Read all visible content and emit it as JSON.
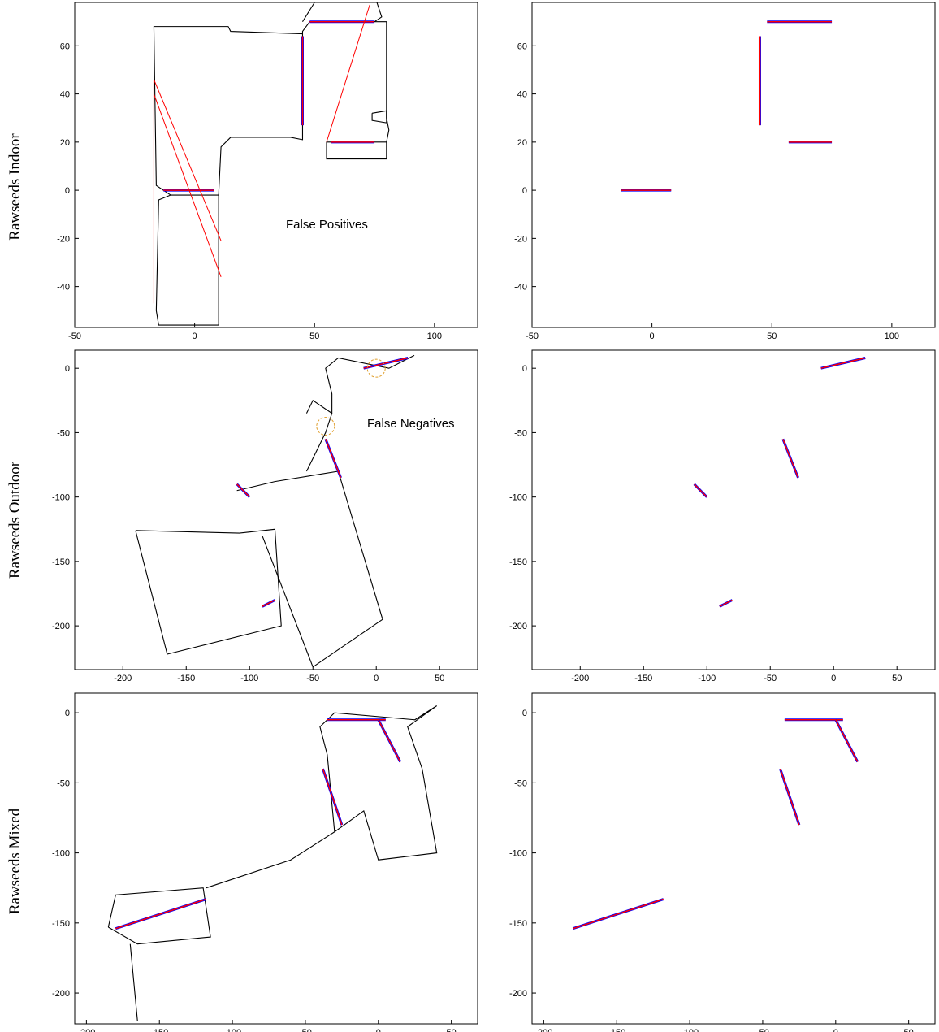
{
  "row_labels": [
    "Rawseeds Indoor",
    "Rawseeds Outdoor",
    "Rawseeds Mixed"
  ],
  "annotations": {
    "false_positives": "False Positives",
    "false_negatives": "False Negatives"
  },
  "colors": {
    "trajectory": "#000000",
    "true_loop_closure": "#0000ff",
    "detected_loop_closure": "#ff0000",
    "false_negative_marker": "#e0a030"
  },
  "chart_data": [
    {
      "type": "line",
      "panel": "indoor-left",
      "xlim": [
        -50,
        118
      ],
      "ylim": [
        -57,
        78
      ],
      "xticks": [
        -50,
        0,
        50,
        100
      ],
      "yticks": [
        -40,
        -20,
        0,
        20,
        40,
        60
      ],
      "grid": false,
      "path": [
        [
          10,
          -56
        ],
        [
          10,
          -2
        ],
        [
          11,
          18
        ],
        [
          15,
          22
        ],
        [
          40,
          22
        ],
        [
          45,
          21
        ],
        [
          45,
          66
        ],
        [
          48,
          70
        ],
        [
          80,
          70
        ],
        [
          80,
          30
        ],
        [
          81,
          25
        ],
        [
          80,
          20
        ],
        [
          55,
          20
        ],
        [
          55,
          13
        ],
        [
          80,
          13
        ],
        [
          80,
          20
        ]
      ],
      "path2": [
        [
          10,
          -2
        ],
        [
          -10,
          -2
        ],
        [
          -15,
          -4
        ],
        [
          -16,
          -50
        ],
        [
          -15,
          -56
        ],
        [
          10,
          -56
        ]
      ],
      "path3": [
        [
          -10,
          -2
        ],
        [
          -16,
          2
        ],
        [
          -17,
          68
        ],
        [
          14,
          68
        ],
        [
          15,
          66
        ],
        [
          45,
          65
        ]
      ],
      "path4": [
        [
          45,
          70
        ],
        [
          50,
          78
        ],
        [
          76,
          78
        ],
        [
          78,
          72
        ],
        [
          75,
          70
        ]
      ],
      "path5": [
        [
          74,
          32
        ],
        [
          80,
          33
        ],
        [
          80,
          28
        ],
        [
          74,
          29
        ],
        [
          74,
          32
        ]
      ],
      "true_segments": [
        [
          [
            -13,
            0
          ],
          [
            8,
            0
          ]
        ],
        [
          [
            45,
            27
          ],
          [
            45,
            64
          ]
        ],
        [
          [
            48,
            70
          ],
          [
            75,
            70
          ]
        ],
        [
          [
            57,
            20
          ],
          [
            75,
            20
          ]
        ]
      ],
      "false_positive_links": [
        [
          [
            -17,
            46
          ],
          [
            11,
            -21
          ]
        ],
        [
          [
            -17,
            40
          ],
          [
            11,
            -36
          ]
        ],
        [
          [
            -17,
            46
          ],
          [
            -17,
            -47
          ]
        ],
        [
          [
            55,
            20
          ],
          [
            73,
            77
          ]
        ]
      ]
    },
    {
      "type": "line",
      "panel": "indoor-right",
      "xlim": [
        -50,
        118
      ],
      "ylim": [
        -57,
        78
      ],
      "xticks": [
        -50,
        0,
        50,
        100
      ],
      "yticks": [
        -40,
        -20,
        0,
        20,
        40,
        60
      ],
      "grid": false,
      "true_segments": [
        [
          [
            -13,
            0
          ],
          [
            8,
            0
          ]
        ],
        [
          [
            45,
            27
          ],
          [
            45,
            64
          ]
        ],
        [
          [
            48,
            70
          ],
          [
            75,
            70
          ]
        ],
        [
          [
            57,
            20
          ],
          [
            75,
            20
          ]
        ]
      ]
    },
    {
      "type": "line",
      "panel": "outdoor-left",
      "xlim": [
        -238,
        80
      ],
      "ylim": [
        -234,
        14
      ],
      "xticks": [
        -200,
        -150,
        -100,
        -50,
        0,
        50
      ],
      "yticks": [
        -200,
        -150,
        -100,
        -50,
        0
      ],
      "grid": false,
      "path": [
        [
          -190,
          -126
        ],
        [
          -165,
          -222
        ],
        [
          -75,
          -200
        ],
        [
          -80,
          -125
        ],
        [
          -108,
          -128
        ],
        [
          -190,
          -126
        ]
      ],
      "path2": [
        [
          -110,
          -95
        ],
        [
          -80,
          -88
        ],
        [
          -30,
          -80
        ],
        [
          5,
          -195
        ],
        [
          -50,
          -232
        ],
        [
          -90,
          -130
        ]
      ],
      "path3": [
        [
          -55,
          -80
        ],
        [
          -40,
          -50
        ],
        [
          -35,
          -35
        ],
        [
          -50,
          -25
        ],
        [
          -55,
          -35
        ]
      ],
      "path4": [
        [
          -35,
          -35
        ],
        [
          -35,
          -20
        ],
        [
          -40,
          0
        ],
        [
          -30,
          8
        ],
        [
          10,
          0
        ],
        [
          30,
          10
        ]
      ],
      "true_segments": [
        [
          [
            -40,
            -55
          ],
          [
            -28,
            -85
          ]
        ],
        [
          [
            -10,
            0
          ],
          [
            25,
            8
          ]
        ],
        [
          [
            -110,
            -90
          ],
          [
            -100,
            -100
          ]
        ],
        [
          [
            -90,
            -185
          ],
          [
            -80,
            -180
          ]
        ]
      ],
      "false_negative_markers": [
        [
          0,
          0
        ],
        [
          -40,
          -45
        ]
      ]
    },
    {
      "type": "line",
      "panel": "outdoor-right",
      "xlim": [
        -238,
        80
      ],
      "ylim": [
        -234,
        14
      ],
      "xticks": [
        -200,
        -150,
        -100,
        -50,
        0,
        50
      ],
      "yticks": [
        -200,
        -150,
        -100,
        -50,
        0
      ],
      "grid": false,
      "true_segments": [
        [
          [
            -40,
            -55
          ],
          [
            -28,
            -85
          ]
        ],
        [
          [
            -10,
            0
          ],
          [
            25,
            8
          ]
        ],
        [
          [
            -110,
            -90
          ],
          [
            -100,
            -100
          ]
        ],
        [
          [
            -90,
            -185
          ],
          [
            -80,
            -180
          ]
        ]
      ]
    },
    {
      "type": "line",
      "panel": "mixed-left",
      "xlim": [
        -208,
        68
      ],
      "ylim": [
        -222,
        14
      ],
      "xticks": [
        -200,
        -150,
        -100,
        -50,
        0,
        50
      ],
      "yticks": [
        -200,
        -150,
        -100,
        -50,
        0
      ],
      "grid": false,
      "path": [
        [
          -185,
          -153
        ],
        [
          -180,
          -130
        ],
        [
          -120,
          -125
        ],
        [
          -115,
          -160
        ],
        [
          -165,
          -165
        ],
        [
          -185,
          -153
        ]
      ],
      "path2": [
        [
          -118,
          -125
        ],
        [
          -60,
          -105
        ],
        [
          -30,
          -85
        ],
        [
          -35,
          -30
        ],
        [
          -40,
          -10
        ],
        [
          -30,
          0
        ],
        [
          25,
          -5
        ],
        [
          40,
          5
        ],
        [
          20,
          -10
        ],
        [
          30,
          -40
        ],
        [
          40,
          -100
        ],
        [
          0,
          -105
        ],
        [
          -10,
          -70
        ],
        [
          -30,
          -85
        ]
      ],
      "path3": [
        [
          -170,
          -165
        ],
        [
          -165,
          -220
        ]
      ],
      "true_segments": [
        [
          [
            -180,
            -154
          ],
          [
            -118,
            -133
          ]
        ],
        [
          [
            -35,
            -5
          ],
          [
            5,
            -5
          ]
        ],
        [
          [
            0,
            -5
          ],
          [
            15,
            -35
          ]
        ],
        [
          [
            -38,
            -40
          ],
          [
            -25,
            -80
          ]
        ]
      ]
    },
    {
      "type": "line",
      "panel": "mixed-right",
      "xlim": [
        -208,
        68
      ],
      "ylim": [
        -222,
        14
      ],
      "xticks": [
        -200,
        -150,
        -100,
        -50,
        0,
        50
      ],
      "yticks": [
        -200,
        -150,
        -100,
        -50,
        0
      ],
      "grid": false,
      "true_segments": [
        [
          [
            -180,
            -154
          ],
          [
            -118,
            -133
          ]
        ],
        [
          [
            -35,
            -5
          ],
          [
            5,
            -5
          ]
        ],
        [
          [
            0,
            -5
          ],
          [
            15,
            -35
          ]
        ],
        [
          [
            -38,
            -40
          ],
          [
            -25,
            -80
          ]
        ]
      ]
    }
  ]
}
